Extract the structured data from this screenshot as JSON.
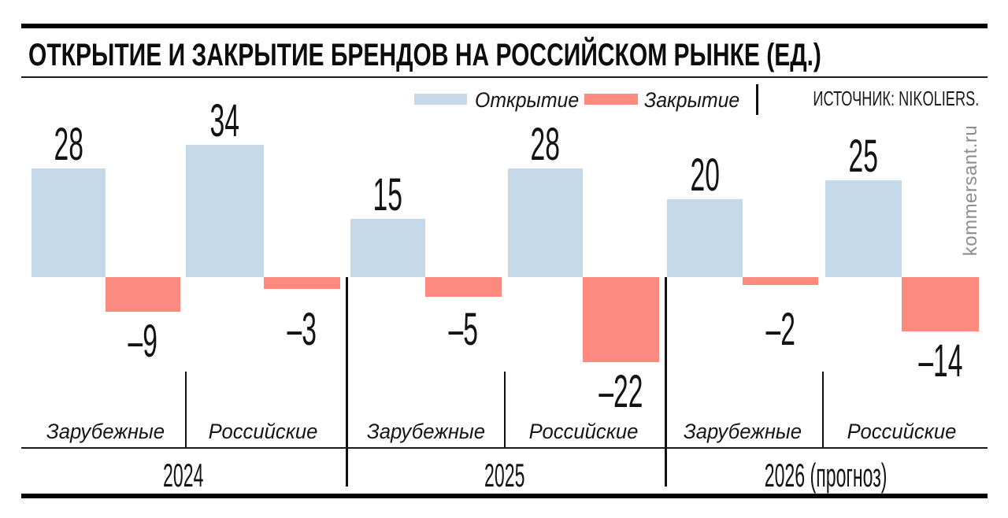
{
  "title": "ОТКРЫТИЕ И ЗАКРЫТИЕ БРЕНДОВ НА РОССИЙСКОМ РЫНКЕ (ЕД.)",
  "source": "ИСТОЧНИК: NIKOLIERS.",
  "watermark": "kommersant.ru",
  "legend": {
    "open_label": "Открытие",
    "close_label": "Закрытие"
  },
  "colors": {
    "open": "#c6d9e8",
    "close": "#fc8a7e",
    "text": "#131313",
    "watermark": "#8e8e8e"
  },
  "chart_data": {
    "type": "bar",
    "title": "ОТКРЫТИЕ И ЗАКРЫТИЕ БРЕНДОВ НА РОССИЙСКОМ РЫНКЕ (ЕД.)",
    "categories": [
      "2024 Зарубежные",
      "2024 Российские",
      "2025 Зарубежные",
      "2025 Российские",
      "2026 (прогноз) Зарубежные",
      "2026 (прогноз) Российские"
    ],
    "series": [
      {
        "name": "Открытие",
        "values": [
          28,
          34,
          15,
          28,
          20,
          25
        ]
      },
      {
        "name": "Закрытие",
        "values": [
          -9,
          -3,
          -5,
          -22,
          -2,
          -14
        ]
      }
    ],
    "groups": [
      {
        "year": "2024",
        "subgroups": [
          {
            "label": "Зарубежные",
            "open": 28,
            "close": -9
          },
          {
            "label": "Российские",
            "open": 34,
            "close": -3
          }
        ]
      },
      {
        "year": "2025",
        "subgroups": [
          {
            "label": "Зарубежные",
            "open": 15,
            "close": -5
          },
          {
            "label": "Российские",
            "open": 28,
            "close": -22
          }
        ]
      },
      {
        "year": "2026 (прогноз)",
        "subgroups": [
          {
            "label": "Зарубежные",
            "open": 20,
            "close": -2
          },
          {
            "label": "Российские",
            "open": 25,
            "close": -14
          }
        ]
      }
    ],
    "ylim": [
      -22,
      34
    ],
    "grid": false,
    "legend_position": "top",
    "baseline": 0
  }
}
